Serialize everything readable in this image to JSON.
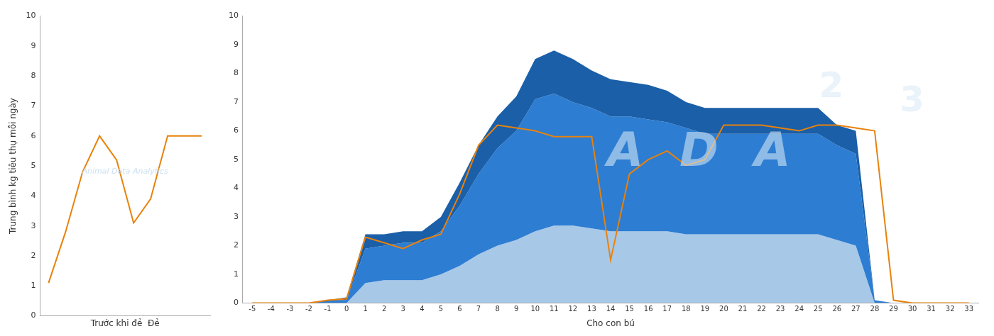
{
  "chart_data": [
    {
      "type": "line",
      "ylabel": "Trung bình kg tiêu thụ mỗi ngày",
      "xlabel": "Trước khi đẻ  Đẻ",
      "x": [
        0,
        1,
        2,
        3,
        4,
        5,
        6,
        7,
        8,
        9
      ],
      "series": [
        {
          "values": [
            1.1,
            2.8,
            4.8,
            6.0,
            5.2,
            3.1,
            3.9,
            6.0,
            6.0,
            6.0
          ],
          "color": "#E8820C",
          "type": "line"
        }
      ],
      "xlim": [
        -0.5,
        9.5
      ],
      "ylim": [
        0,
        10
      ],
      "yticks": [
        0,
        1,
        2,
        3,
        4,
        5,
        6,
        7,
        8,
        9,
        10
      ],
      "tick_labels": "y",
      "grid": false,
      "annotations": [
        "Animal Data Analytics"
      ]
    },
    {
      "type": "area",
      "xlabel": "Cho con bú",
      "x": [
        -5,
        -4,
        -3,
        -2,
        -1,
        0,
        1,
        2,
        3,
        4,
        5,
        6,
        7,
        8,
        9,
        10,
        11,
        12,
        13,
        14,
        15,
        16,
        17,
        18,
        19,
        20,
        21,
        22,
        23,
        24,
        25,
        26,
        27,
        28,
        29,
        30,
        31,
        32,
        33
      ],
      "series": [
        {
          "values": [
            0.0,
            0.0,
            0.0,
            0.0,
            0.0,
            0.0,
            0.7,
            0.8,
            0.8,
            0.8,
            1.0,
            1.3,
            1.7,
            2.0,
            2.2,
            2.5,
            2.7,
            2.7,
            2.6,
            2.5,
            2.5,
            2.5,
            2.5,
            2.4,
            2.4,
            2.4,
            2.4,
            2.4,
            2.4,
            2.4,
            2.4,
            2.2,
            2.0,
            0.0,
            0.0,
            0.0,
            0.0,
            0.0,
            0.0
          ],
          "color": "#a8c8e8",
          "type": "area"
        },
        {
          "values": [
            0.0,
            0.0,
            0.0,
            0.0,
            0.1,
            0.1,
            1.9,
            2.0,
            2.1,
            2.1,
            2.5,
            3.4,
            4.5,
            5.4,
            6.0,
            7.1,
            7.3,
            7.0,
            6.8,
            6.5,
            6.5,
            6.4,
            6.3,
            6.1,
            5.9,
            5.9,
            5.9,
            5.9,
            5.9,
            5.9,
            5.9,
            5.5,
            5.2,
            0.1,
            0.0,
            0.0,
            0.0,
            0.0,
            0.0
          ],
          "color": "#2d7dd2",
          "type": "area"
        },
        {
          "values": [
            0.0,
            0.0,
            0.0,
            0.0,
            0.1,
            0.2,
            2.4,
            2.4,
            2.5,
            2.5,
            3.0,
            4.2,
            5.5,
            6.5,
            7.2,
            8.5,
            8.8,
            8.5,
            8.1,
            7.8,
            7.7,
            7.6,
            7.4,
            7.0,
            6.8,
            6.8,
            6.8,
            6.8,
            6.8,
            6.8,
            6.8,
            6.2,
            6.0,
            0.1,
            0.0,
            0.0,
            0.0,
            0.0,
            0.0
          ],
          "color": "#1a5fa8",
          "type": "area"
        },
        {
          "values": [
            0.0,
            0.0,
            0.0,
            0.0,
            0.1,
            0.15,
            2.3,
            2.1,
            1.9,
            2.2,
            2.4,
            3.8,
            5.5,
            6.2,
            6.1,
            6.0,
            5.8,
            5.8,
            5.8,
            1.5,
            4.5,
            5.0,
            5.3,
            4.8,
            5.0,
            6.2,
            6.2,
            6.2,
            6.1,
            6.0,
            6.2,
            6.2,
            6.1,
            6.0,
            0.1,
            0.0,
            0.0,
            0.0,
            0.0
          ],
          "color": "#E8820C",
          "type": "line"
        }
      ],
      "xlim": [
        -5.5,
        33.5
      ],
      "xticks": [
        -5,
        -4,
        -3,
        -2,
        -1,
        0,
        1,
        2,
        3,
        4,
        5,
        6,
        7,
        8,
        9,
        10,
        11,
        12,
        13,
        14,
        15,
        16,
        17,
        18,
        19,
        20,
        21,
        22,
        23,
        24,
        25,
        26,
        27,
        28,
        29,
        30,
        31,
        32,
        33
      ],
      "ylim": [
        0,
        10
      ],
      "yticks": [
        0,
        1,
        2,
        3,
        4,
        5,
        6,
        7,
        8,
        9,
        10
      ],
      "grid": false,
      "annotations": [
        "A",
        "D",
        "A",
        "2",
        "3"
      ]
    }
  ]
}
